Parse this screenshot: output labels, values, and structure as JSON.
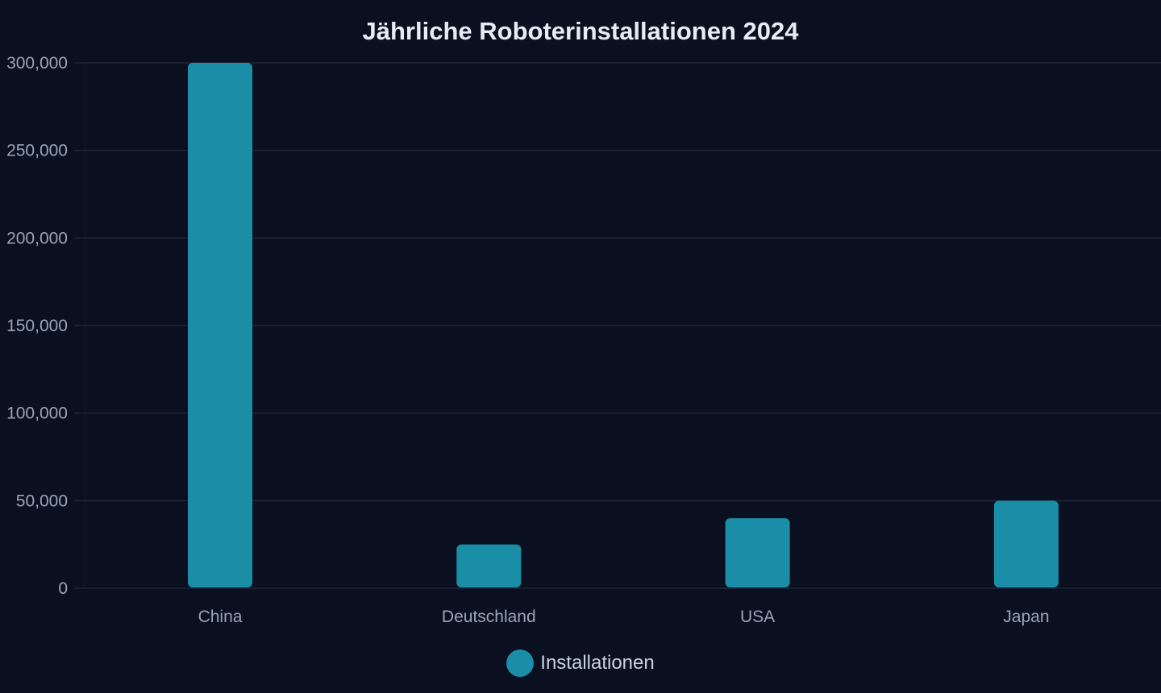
{
  "chart_data": {
    "type": "bar",
    "title": "Jährliche Roboterinstallationen 2024",
    "categories": [
      "China",
      "Deutschland",
      "USA",
      "Japan"
    ],
    "series": [
      {
        "name": "Installationen",
        "values": [
          300000,
          25000,
          40000,
          50000
        ]
      }
    ],
    "xlabel": "",
    "ylabel": "",
    "ylim": [
      0,
      300000
    ],
    "yticks": [
      "0",
      "50,000",
      "100,000",
      "150,000",
      "200,000",
      "250,000",
      "300,000"
    ],
    "grid": true,
    "legend": "bottom-center",
    "colors": {
      "bar": "#1a8ea6",
      "background": "#0b1020",
      "grid": "#1f2637",
      "text": "#9aa4b8"
    }
  }
}
